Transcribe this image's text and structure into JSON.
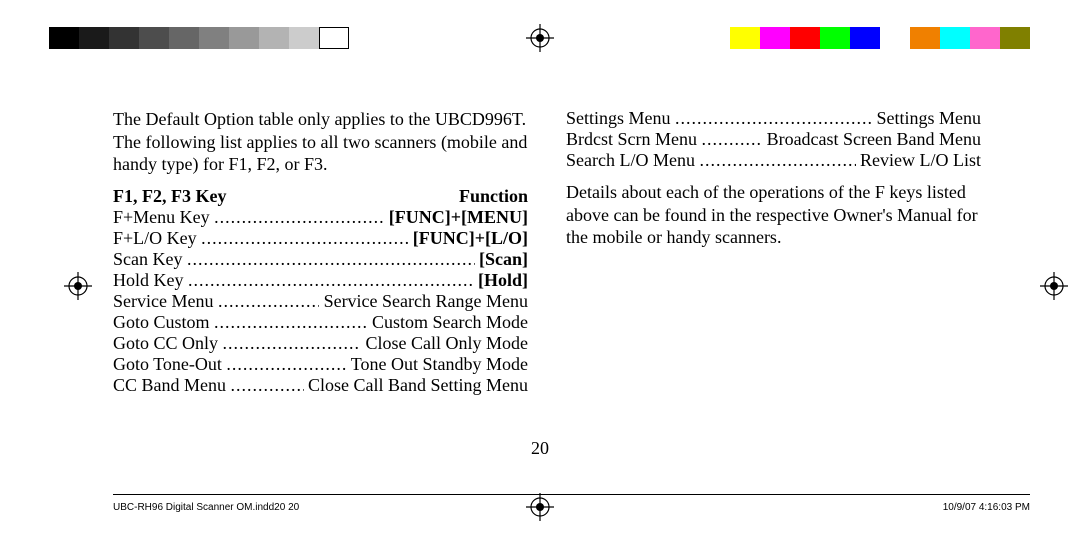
{
  "bars": {
    "left_colors": [
      "#000000",
      "#1a1a1a",
      "#333333",
      "#4d4d4d",
      "#666666",
      "#808080",
      "#999999",
      "#b3b3b3",
      "#cccccc",
      "#ffffff"
    ],
    "left_border": "#000000",
    "right_colors": [
      "#ffff00",
      "#ff00ff",
      "#ff0000",
      "#00ff00",
      "#0000ff",
      "#ffffff",
      "#f08000",
      "#00ffff",
      "#ff66cc",
      "#808000"
    ]
  },
  "intro_para": "The Default Option table only applies to the UBCD996T. The following list applies to all two scanners (mobile and handy type) for F1, F2, or F3.",
  "heading": {
    "left": "F1, F2, F3 Key",
    "right": "Function"
  },
  "left_entries": [
    {
      "label": "F+Menu Key",
      "value": "[FUNC]+[MENU]",
      "bold": true
    },
    {
      "label": "F+L/O Key",
      "value": "[FUNC]+[L/O]",
      "bold": true
    },
    {
      "label": "Scan Key",
      "value": "[Scan]",
      "bold": true
    },
    {
      "label": "Hold Key",
      "value": "[Hold]",
      "bold": true
    },
    {
      "label": "Service Menu",
      "value": "Service Search Range Menu",
      "bold": false
    },
    {
      "label": "Goto Custom",
      "value": "Custom Search Mode",
      "bold": false
    },
    {
      "label": "Goto CC Only",
      "value": "Close Call Only Mode",
      "bold": false
    },
    {
      "label": "Goto Tone-Out",
      "value": "Tone Out Standby Mode",
      "bold": false
    },
    {
      "label": "CC Band Menu",
      "value": "Close Call Band Setting Menu",
      "bold": false
    }
  ],
  "right_entries": [
    {
      "label": "Settings Menu",
      "value": "Settings Menu",
      "bold": false
    },
    {
      "label": "Brdcst Scrn Menu",
      "value": "Broadcast Screen Band Menu",
      "bold": false
    },
    {
      "label": "Search L/O Menu",
      "value": "Review L/O List",
      "bold": false
    }
  ],
  "details_para": "Details about each of the operations of the F keys listed above can be found in the respective Owner's Manual for the mobile or handy scanners.",
  "page_number": "20",
  "footer": {
    "left": "UBC-RH96 Digital Scanner OM.indd20   20",
    "right": "10/9/07   4:16:03 PM"
  }
}
